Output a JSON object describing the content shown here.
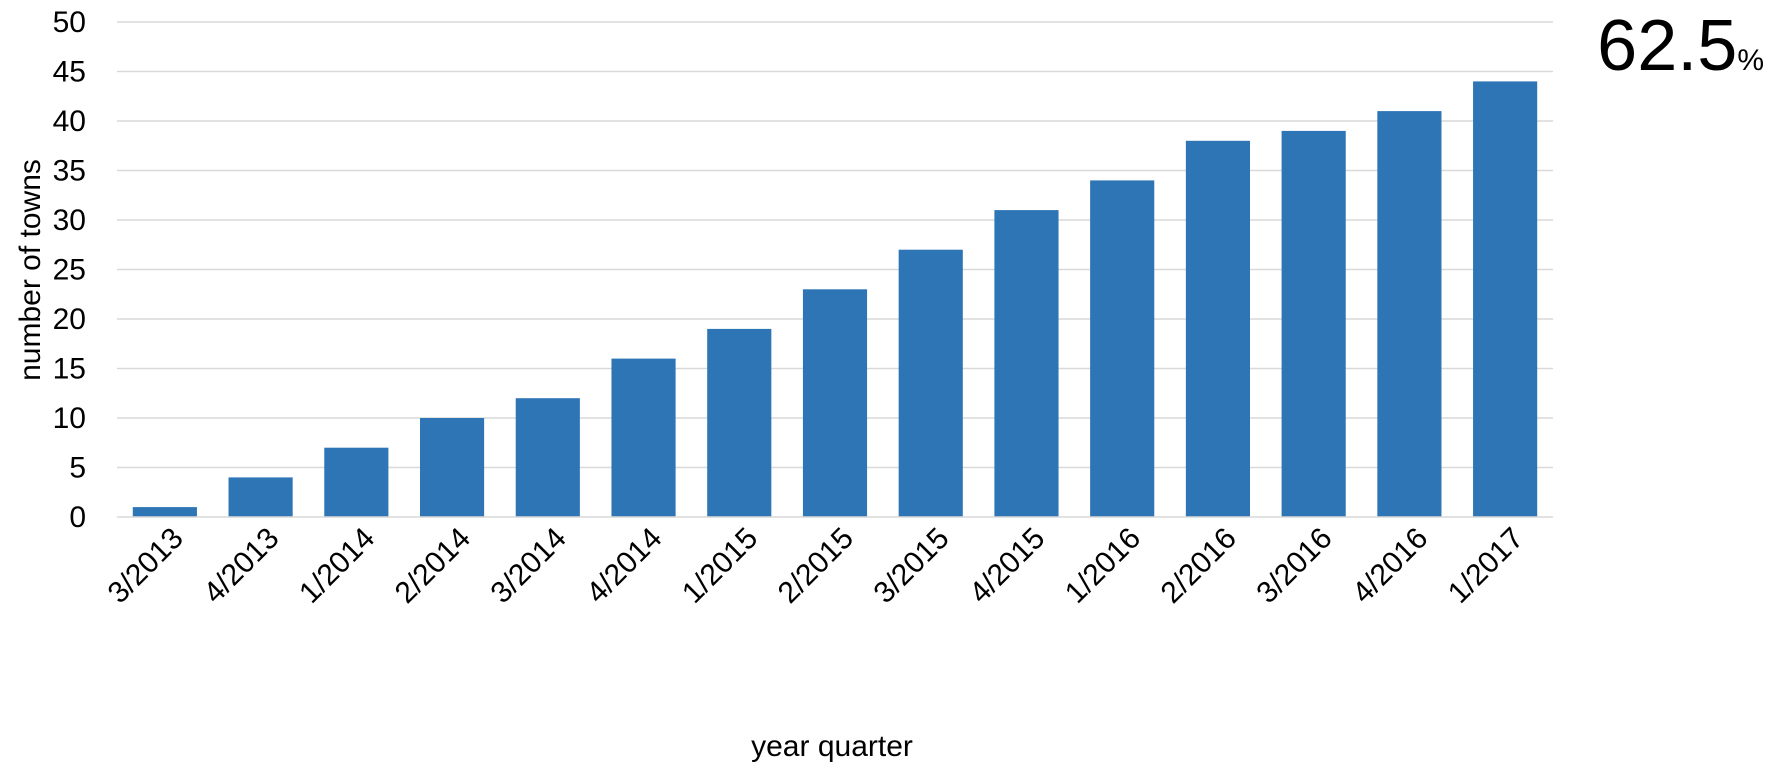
{
  "chart_data": {
    "type": "bar",
    "categories": [
      "3/2013",
      "4/2013",
      "1/2014",
      "2/2014",
      "3/2014",
      "4/2014",
      "1/2015",
      "2/2015",
      "3/2015",
      "4/2015",
      "1/2016",
      "2/2016",
      "3/2016",
      "4/2016",
      "1/2017"
    ],
    "values": [
      1,
      4,
      7,
      10,
      12,
      16,
      19,
      23,
      27,
      31,
      34,
      38,
      39,
      41,
      44
    ],
    "xlabel": "year quarter",
    "ylabel": "number of towns",
    "ylim": [
      0,
      50
    ],
    "yticks": [
      0,
      5,
      10,
      15,
      20,
      25,
      30,
      35,
      40,
      45,
      50
    ],
    "grid": true,
    "bar_color": "#2e75b6",
    "grid_color": "#d9d9d9",
    "annotation": {
      "value": "62.5",
      "unit": "%"
    }
  }
}
